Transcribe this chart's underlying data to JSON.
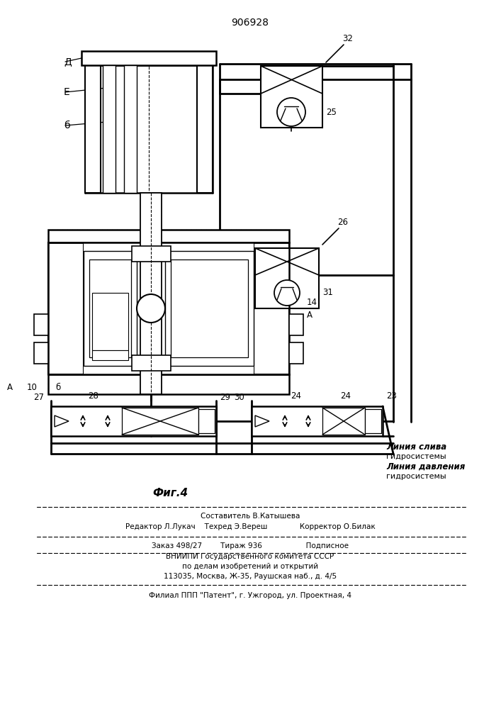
{
  "title": "906928",
  "fig_label": "Фиг.4",
  "bg": "#ffffff",
  "lc": "#000000",
  "footer": {
    "line1": "Составитель В.Катышева",
    "line2": "Редактор Л.Лукач    Техред Э.Вереш              Корректор О.Билак",
    "line3": "Заказ 498/27        Тираж 936                   Подписное",
    "line4": "ВНИИПИ Государственного комитета СССР",
    "line5": "по делам изобретений и открытий",
    "line6": "113035, Москва, Ж-35, Раушская наб., д. 4/5",
    "line7": "Филиал ППП \"Патент\", г. Ужгород, ул. Проектная, 4"
  },
  "line_drain": "Линия слива",
  "hyd_sys": "гидросистемы",
  "line_pres": "Линия давления",
  "labels": {
    "D": "Д",
    "E": "Е",
    "b": "б",
    "A": "А",
    "n10": "10",
    "n14": "14",
    "n23": "23",
    "n24": "24",
    "n25": "25",
    "n26": "26",
    "n27": "27",
    "n28": "28",
    "n29": "29",
    "n30": "30",
    "n31": "31",
    "n32": "32"
  }
}
